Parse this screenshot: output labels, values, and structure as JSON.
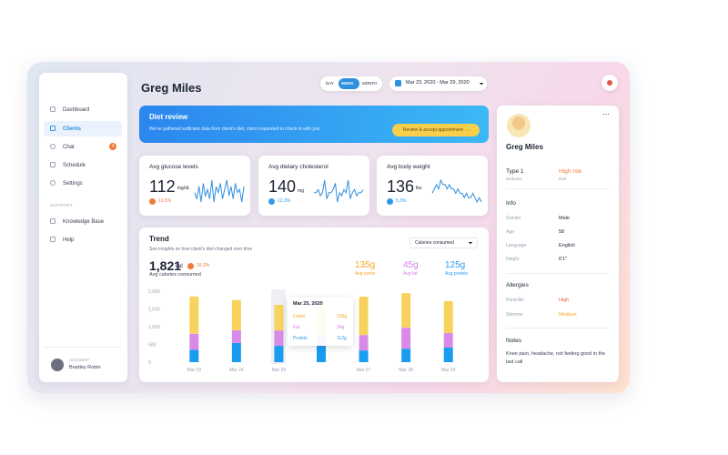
{
  "sidebar": {
    "nav": [
      "Dashboard",
      "Clients",
      "Chat",
      "Schedule",
      "Settings"
    ],
    "chat_badge": 4,
    "support_title": "SUPPORT",
    "support": [
      "Knowledge Base",
      "Help"
    ],
    "account_label": "ACCOUNT",
    "account_name": "Bradley Robin"
  },
  "header": {
    "title": "Greg Miles",
    "tabs": [
      "DAY",
      "WEEK",
      "MONTH"
    ],
    "date_range": "Mar 23, 2020 - Mar 29, 2020"
  },
  "banner": {
    "title": "Diet review",
    "text": "We've gathered sufficient data from client's diet, client requested to check in with you",
    "button": "Review & accept appointment →"
  },
  "metrics": [
    {
      "label": "Avg glucose levels",
      "value": 112,
      "unit": "mg/dL",
      "change": "13.5%",
      "change_color": "#f07a3a",
      "color": "#2f8fe0",
      "spark": [
        5,
        3,
        7,
        2,
        8,
        4,
        6,
        3,
        9,
        2,
        7,
        5,
        8,
        3,
        6,
        9,
        4,
        7,
        3,
        8,
        5,
        6,
        2,
        7
      ]
    },
    {
      "label": "Avg dietary cholesterol",
      "value": 140,
      "unit": "mg",
      "change": "12.3%",
      "change_color": "#2f9ae8",
      "color": "#2f8fe0",
      "spark": [
        5,
        5,
        6,
        4,
        5,
        9,
        3,
        5,
        5,
        6,
        8,
        2,
        5,
        4,
        6,
        5,
        9,
        3,
        5,
        6,
        4,
        5,
        5,
        6
      ]
    },
    {
      "label": "Avg body weight",
      "value": 136,
      "unit": "lbs",
      "change": "5.3%",
      "change_color": "#2f9ae8",
      "color": "#2f8fe0",
      "spark": [
        4,
        5,
        6,
        5,
        7,
        6,
        6,
        5,
        6,
        5,
        5,
        4,
        5,
        4,
        4,
        3,
        4,
        3,
        3,
        4,
        3,
        2,
        3,
        2
      ]
    }
  ],
  "trend": {
    "title": "Trend",
    "subtitle": "See insights on how client's diet changed over time",
    "dropdown": "Calories consumed",
    "total": "1,821",
    "total_unit": "cal",
    "change": "16.2%",
    "total_label": "Avg calories consumed",
    "macros": [
      {
        "value": "135g",
        "label": "Avg carbs",
        "color": "#f5a623"
      },
      {
        "value": "45g",
        "label": "Avg fat",
        "color": "#d77fe6"
      },
      {
        "value": "125g",
        "label": "Avg protein",
        "color": "#2f9ae8"
      }
    ],
    "chart": {
      "type": "bar",
      "stacked": true,
      "categories": [
        "Mar 23",
        "Mar 24",
        "Mar 25",
        null,
        "Mar 27",
        "Mar 28",
        "Mar 29"
      ],
      "series": [
        {
          "name": "Protein",
          "color": "#1a9cf0",
          "values": [
            350,
            540,
            460,
            460,
            330,
            380,
            410
          ]
        },
        {
          "name": "Fat",
          "color": "#d98ae8",
          "values": [
            450,
            360,
            435,
            300,
            435,
            590,
            410
          ]
        },
        {
          "name": "Carbs",
          "color": "#f7d25c",
          "values": [
            1050,
            850,
            720,
            800,
            1080,
            975,
            900
          ]
        }
      ],
      "ylim": [
        0,
        2000
      ],
      "yticks": [
        {
          "value": 0,
          "label": "0"
        },
        {
          "value": 500,
          "label": "500"
        },
        {
          "value": 1000,
          "label": "1,000"
        },
        {
          "value": 1500,
          "label": "1,500"
        },
        {
          "value": 2000,
          "label": "2,000"
        }
      ],
      "tooltip": {
        "date": "Mar 25, 2020",
        "values": [
          "135g",
          "34g",
          "112g"
        ]
      }
    }
  },
  "profile": {
    "name": "Greg Miles",
    "condition": "Type 1",
    "condition_label": "Diabetes",
    "risk": "High risk",
    "risk_label": "Risk",
    "info_title": "Info",
    "info": [
      [
        "Gender",
        "Male"
      ],
      [
        "Age",
        "58"
      ],
      [
        "Language",
        "English"
      ],
      [
        "Height",
        "6'1\""
      ]
    ],
    "allergies_title": "Allergies",
    "allergies": [
      [
        "Penicillin",
        "High"
      ],
      [
        "Stimone",
        "Medium"
      ]
    ],
    "notes_title": "Notes",
    "notes": "Knee pain, headache, not feeling good in the last call"
  }
}
